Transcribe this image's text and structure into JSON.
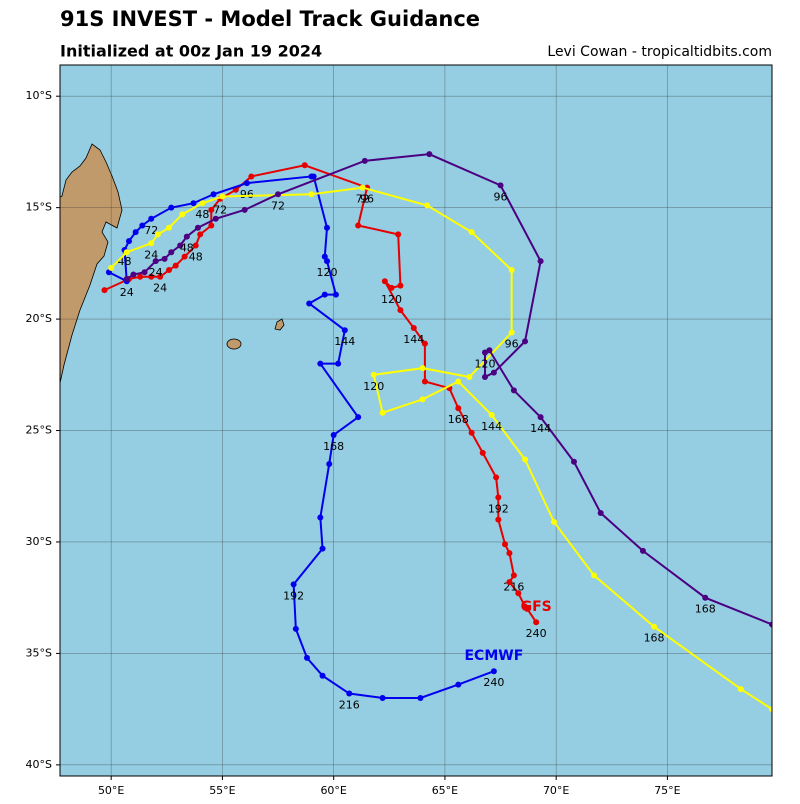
{
  "chart_data": {
    "type": "line",
    "title": "91S INVEST - Model Track Guidance",
    "subtitle": "Initialized at 00z Jan 19 2024",
    "credit": "Levi Cowan - tropicaltidbits.com",
    "xlim": [
      47.7,
      79.7
    ],
    "ylim": [
      -40.5,
      -8.6
    ],
    "xticks": [
      {
        "value": 50,
        "label": "50°E"
      },
      {
        "value": 55,
        "label": "55°E"
      },
      {
        "value": 60,
        "label": "60°E"
      },
      {
        "value": 65,
        "label": "65°E"
      },
      {
        "value": 70,
        "label": "70°E"
      },
      {
        "value": 75,
        "label": "75°E"
      }
    ],
    "yticks": [
      {
        "value": -10,
        "label": "10°S"
      },
      {
        "value": -15,
        "label": "15°S"
      },
      {
        "value": -20,
        "label": "20°S"
      },
      {
        "value": -25,
        "label": "25°S"
      },
      {
        "value": -30,
        "label": "30°S"
      },
      {
        "value": -35,
        "label": "35°S"
      },
      {
        "value": -40,
        "label": "40°S"
      }
    ],
    "grid": true,
    "series": [
      {
        "name": "GFS",
        "color": "#e60000",
        "x": [
          49.7,
          50.8,
          51.3,
          51.8,
          52.2,
          52.6,
          52.9,
          53.3,
          53.8,
          54.0,
          54.5,
          54.5,
          54.9,
          55.6,
          56.3,
          58.7,
          61.5,
          61.1,
          62.9,
          63.0,
          62.6,
          62.3,
          63.0,
          63.6,
          64.1,
          64.1,
          65.2,
          65.6,
          66.2,
          66.7,
          67.3,
          67.4,
          67.4,
          67.7,
          67.9,
          68.1,
          67.9,
          68.3,
          68.6,
          68.7,
          69.1
        ],
        "values": [
          -18.7,
          -18.2,
          -18.1,
          -18.1,
          -18.1,
          -17.8,
          -17.6,
          -17.2,
          -16.7,
          -16.2,
          -15.8,
          -15.1,
          -14.6,
          -14.2,
          -13.6,
          -13.1,
          -14.1,
          -15.8,
          -16.2,
          -18.5,
          -18.6,
          -18.3,
          -19.6,
          -20.4,
          -21.1,
          -22.8,
          -23.1,
          -24.0,
          -25.1,
          -26.0,
          -27.1,
          -28.0,
          -29.0,
          -30.1,
          -30.5,
          -31.5,
          -31.8,
          -32.3,
          -32.9,
          -33.0,
          -33.6
        ],
        "point_labels": [
          null,
          null,
          null,
          null,
          "24",
          null,
          null,
          null,
          "48",
          null,
          null,
          null,
          "72",
          null,
          null,
          null,
          "96",
          null,
          null,
          null,
          "120",
          null,
          null,
          "144",
          null,
          null,
          null,
          "168",
          null,
          null,
          null,
          "192",
          null,
          null,
          null,
          "216",
          null,
          null,
          null,
          null,
          "240"
        ]
      },
      {
        "name": "ECMWF",
        "color": "#0000ee",
        "x": [
          49.9,
          50.7,
          50.6,
          50.8,
          51.1,
          51.4,
          51.8,
          52.7,
          53.7,
          54.6,
          56.1,
          59.0,
          59.1,
          59.7,
          59.6,
          59.7,
          60.1,
          59.6,
          58.9,
          60.5,
          60.2,
          59.4,
          61.1,
          60.0,
          59.8,
          59.4,
          59.5,
          58.2,
          58.3,
          58.8,
          59.5,
          60.7,
          62.2,
          63.9,
          65.6,
          67.2
        ],
        "values": [
          -17.9,
          -18.3,
          -16.9,
          -16.5,
          -16.1,
          -15.8,
          -15.5,
          -15.0,
          -14.8,
          -14.4,
          -13.9,
          -13.6,
          -13.6,
          -15.9,
          -17.2,
          -17.4,
          -18.9,
          -18.9,
          -19.3,
          -20.5,
          -22.0,
          -22.0,
          -24.4,
          -25.2,
          -26.5,
          -28.9,
          -30.3,
          -31.9,
          -33.9,
          -35.2,
          -36.0,
          -36.8,
          -37.0,
          -37.0,
          -36.4,
          -35.8
        ],
        "point_labels": [
          null,
          "24",
          "48",
          null,
          null,
          null,
          "72",
          null,
          null,
          null,
          "96",
          null,
          null,
          null,
          null,
          "120",
          null,
          null,
          null,
          "144",
          null,
          null,
          null,
          "168",
          null,
          null,
          null,
          "192",
          null,
          null,
          null,
          "216",
          null,
          null,
          null,
          "240"
        ]
      },
      {
        "color": "#ffff00",
        "x": [
          50.0,
          50.7,
          51.8,
          52.1,
          52.6,
          53.2,
          54.1,
          55.0,
          59.0,
          61.3,
          64.2,
          66.2,
          68.0,
          68.0,
          66.1,
          64.0,
          61.8,
          62.2,
          64.0,
          65.6,
          67.1,
          68.6,
          69.9,
          71.7,
          74.4,
          78.3,
          79.7
        ],
        "values": [
          -17.7,
          -17.0,
          -16.6,
          -16.2,
          -15.9,
          -15.3,
          -14.8,
          -14.5,
          -14.4,
          -14.1,
          -14.9,
          -16.1,
          -17.8,
          -20.6,
          -22.6,
          -22.2,
          -22.5,
          -24.2,
          -23.6,
          -22.8,
          -24.3,
          -26.3,
          -29.1,
          -31.5,
          -33.8,
          -36.6,
          -37.5
        ],
        "point_labels": [
          null,
          null,
          "24",
          null,
          null,
          null,
          "48",
          null,
          null,
          "72",
          null,
          null,
          null,
          "96",
          null,
          null,
          "120",
          null,
          null,
          null,
          "144",
          null,
          null,
          null,
          "168",
          null,
          null
        ]
      },
      {
        "color": "#4b0082",
        "x": [
          50.7,
          51.0,
          51.5,
          52.0,
          52.4,
          52.7,
          53.1,
          53.4,
          53.9,
          54.7,
          56.0,
          57.5,
          61.4,
          64.3,
          67.5,
          69.3,
          68.6,
          67.2,
          66.8,
          66.8,
          67.0,
          68.1,
          69.3,
          70.8,
          72.0,
          73.9,
          76.7,
          79.7
        ],
        "values": [
          -18.2,
          -18.0,
          -17.9,
          -17.4,
          -17.3,
          -17.0,
          -16.7,
          -16.3,
          -15.9,
          -15.5,
          -15.1,
          -14.4,
          -12.9,
          -12.6,
          -14.0,
          -17.4,
          -21.0,
          -22.4,
          -22.6,
          -21.5,
          -21.4,
          -23.2,
          -24.4,
          -26.4,
          -28.7,
          -30.4,
          -32.5,
          -33.7
        ],
        "point_labels": [
          null,
          null,
          null,
          "24",
          null,
          null,
          null,
          "48",
          null,
          null,
          null,
          "72",
          null,
          null,
          "96",
          null,
          null,
          null,
          null,
          "120",
          null,
          null,
          "144",
          null,
          null,
          null,
          "168",
          null
        ]
      }
    ]
  }
}
